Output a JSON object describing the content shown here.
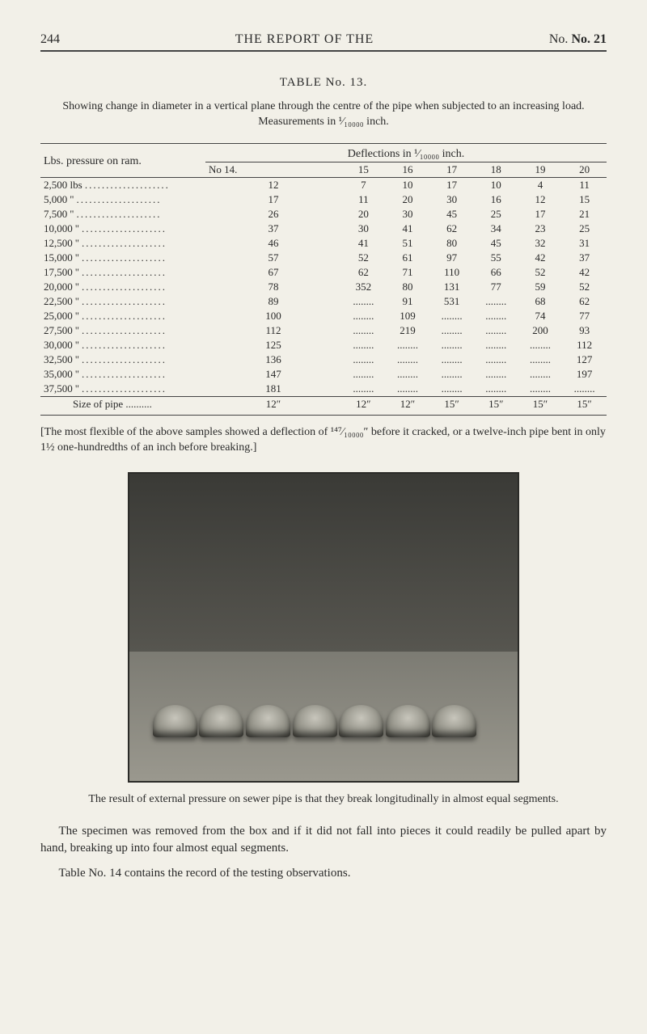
{
  "header": {
    "page_number": "244",
    "title": "THE REPORT OF THE",
    "issue": "No. 21"
  },
  "table": {
    "title": "TABLE No. 13.",
    "intro": "Showing change in diameter in a vertical plane through the centre of the pipe when subjected to an increasing load.  Measurements in ¹⁄₁₀₀₀₀ inch.",
    "lbs_header": "Lbs. pressure on ram.",
    "deflections_header": "Deflections in ¹⁄₁₀₀₀₀ inch.",
    "columns": [
      "No 14.",
      "15",
      "16",
      "17",
      "18",
      "19",
      "20"
    ],
    "rows": [
      {
        "label": "2,500 lbs",
        "vals": [
          "12",
          "7",
          "10",
          "17",
          "10",
          "4",
          "11"
        ]
      },
      {
        "label": "5,000  ''",
        "vals": [
          "17",
          "11",
          "20",
          "30",
          "16",
          "12",
          "15"
        ]
      },
      {
        "label": "7,500  ''",
        "vals": [
          "26",
          "20",
          "30",
          "45",
          "25",
          "17",
          "21"
        ]
      },
      {
        "label": "10,000 ''",
        "vals": [
          "37",
          "30",
          "41",
          "62",
          "34",
          "23",
          "25"
        ]
      },
      {
        "label": "12,500 ''",
        "vals": [
          "46",
          "41",
          "51",
          "80",
          "45",
          "32",
          "31"
        ]
      },
      {
        "label": "15,000 ''",
        "vals": [
          "57",
          "52",
          "61",
          "97",
          "55",
          "42",
          "37"
        ]
      },
      {
        "label": "17,500 ''",
        "vals": [
          "67",
          "62",
          "71",
          "110",
          "66",
          "52",
          "42"
        ]
      },
      {
        "label": "20,000 ''",
        "vals": [
          "78",
          "352",
          "80",
          "131",
          "77",
          "59",
          "52"
        ]
      },
      {
        "label": "22,500 ''",
        "vals": [
          "89",
          "........",
          "91",
          "531",
          "........",
          "68",
          "62"
        ]
      },
      {
        "label": "25,000 ''",
        "vals": [
          "100",
          "........",
          "109",
          "........",
          "........",
          "74",
          "77"
        ]
      },
      {
        "label": "27,500 ''",
        "vals": [
          "112",
          "........",
          "219",
          "........",
          "........",
          "200",
          "93"
        ]
      },
      {
        "label": "30,000 ''",
        "vals": [
          "125",
          "........",
          "........",
          "........",
          "........",
          "........",
          "112"
        ]
      },
      {
        "label": "32,500 ''",
        "vals": [
          "136",
          "........",
          "........",
          "........",
          "........",
          "........",
          "127"
        ]
      },
      {
        "label": "35,000 ''",
        "vals": [
          "147",
          "........",
          "........",
          "........",
          "........",
          "........",
          "197"
        ]
      },
      {
        "label": "37,500 ''",
        "vals": [
          "181",
          "........",
          "........",
          "........",
          "........",
          "........",
          "........"
        ]
      }
    ],
    "size_row": {
      "label": "Size of pipe ..........",
      "vals": [
        "12″",
        "12″",
        "12″",
        "15″",
        "15″",
        "15″",
        "15″"
      ]
    }
  },
  "table_footnote": "[The most flexible of the above samples showed a deflection of ¹⁴⁷⁄₁₀₀₀₀″ before it cracked, or a twelve-inch pipe bent in only 1½ one-hundredths of an inch before breaking.]",
  "photo_caption": "The result of external pressure on sewer pipe is that they break longitudinally in almost equal segments.",
  "paragraphs": [
    "The specimen was removed from the box and if it did not fall into pieces it could readily be pulled apart by hand, breaking up into four almost equal segments.",
    "Table No. 14 contains the record of the testing observations."
  ]
}
